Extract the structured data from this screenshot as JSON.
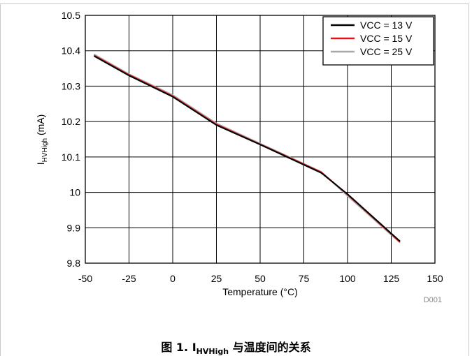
{
  "chart_data": {
    "type": "line",
    "xlabel": "Temperature (°C)",
    "ylabel_main": "I",
    "ylabel_sub": "HVHigh",
    "ylabel_unit": " (mA)",
    "xlim": [
      -50,
      150
    ],
    "ylim": [
      9.8,
      10.5
    ],
    "xticks": [
      -50,
      -25,
      0,
      25,
      50,
      75,
      100,
      125,
      150
    ],
    "yticks": [
      9.8,
      9.9,
      10,
      10.1,
      10.2,
      10.3,
      10.4,
      10.5
    ],
    "grid": true,
    "legend_position": "top-right",
    "code": "D001",
    "series": [
      {
        "name": "VCC = 13 V",
        "color": "#000000",
        "x": [
          -45,
          -25,
          0,
          25,
          50,
          85,
          100,
          130
        ],
        "y": [
          10.385,
          10.33,
          10.27,
          10.19,
          10.135,
          10.055,
          9.995,
          9.862
        ]
      },
      {
        "name": "VCC = 15 V",
        "color": "#e0141e",
        "x": [
          -45,
          -25,
          0,
          25,
          50,
          85,
          100,
          130
        ],
        "y": [
          10.387,
          10.332,
          10.272,
          10.192,
          10.136,
          10.057,
          9.994,
          9.86
        ]
      },
      {
        "name": "VCC = 25 V",
        "color": "#a8a8a8",
        "x": [
          -45,
          -25,
          0,
          25,
          50,
          85,
          100,
          130
        ],
        "y": [
          10.39,
          10.334,
          10.275,
          10.195,
          10.138,
          10.058,
          9.99,
          9.858
        ]
      }
    ]
  },
  "caption": {
    "prefix": "图 1. I",
    "sub": "HVHigh",
    "suffix": " 与温度间的关系"
  }
}
